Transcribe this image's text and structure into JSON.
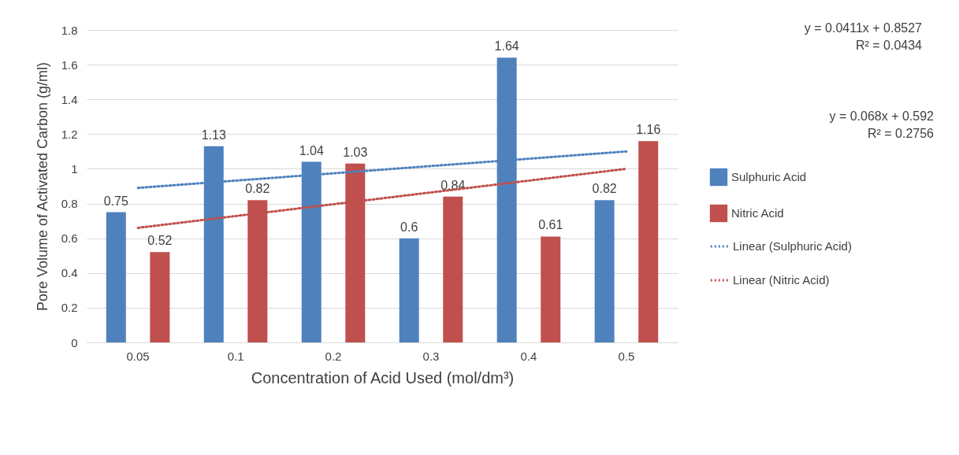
{
  "chart_data": {
    "type": "bar",
    "xlabel": "Concentration of Acid Used (mol/dm³)",
    "ylabel": "Pore Volume of Activated Carbon (g/ml)",
    "categories": [
      "0.05",
      "0.1",
      "0.2",
      "0.3",
      "0.4",
      "0.5"
    ],
    "series": [
      {
        "name": "Sulphuric Acid",
        "color": "#4f81bd",
        "values": [
          0.75,
          1.13,
          1.04,
          0.6,
          1.64,
          0.82
        ],
        "value_labels": [
          "0.75",
          "1.13",
          "1.04",
          "0.6",
          "1.64",
          "0.82"
        ]
      },
      {
        "name": "Nitric Acid",
        "color": "#c0504d",
        "values": [
          0.52,
          0.82,
          1.03,
          0.84,
          0.61,
          1.16
        ],
        "value_labels": [
          "0.52",
          "0.82",
          "1.03",
          "0.84",
          "0.61",
          "1.16"
        ]
      },
      {
        "name": "Linear (Sulphuric Acid)",
        "type": "line",
        "line_style": "dotted",
        "color": "#4f81bd",
        "x": [
          "0.05",
          "0.5"
        ],
        "values": [
          0.89,
          1.1
        ]
      },
      {
        "name": "Linear (Nitric Acid)",
        "type": "line",
        "line_style": "dotted",
        "color": "#c0504d",
        "x": [
          "0.05",
          "0.5"
        ],
        "values": [
          0.66,
          1.0
        ]
      }
    ],
    "ylim": [
      0,
      1.8
    ],
    "yticks": [
      0,
      0.2,
      0.4,
      0.6,
      0.8,
      1,
      1.2,
      1.4,
      1.6,
      1.8
    ],
    "grid": "y",
    "legend": "right",
    "annotations": [
      "y = 0.0411x + 0.8527\nR² = 0.0434",
      "y = 0.068x + 0.592\nR² = 0.2756"
    ]
  }
}
